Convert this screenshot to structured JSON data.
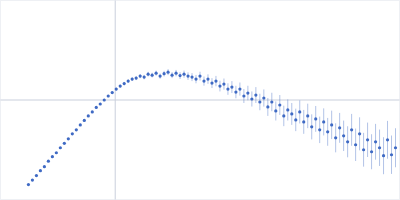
{
  "chart_data": {
    "type": "scatter",
    "x": [
      28,
      32,
      36,
      40,
      44,
      48,
      52,
      56,
      60,
      64,
      68,
      72,
      76,
      80,
      84,
      88,
      92,
      96,
      100,
      104,
      108,
      112,
      116,
      120,
      124,
      128,
      132,
      136,
      140,
      144,
      148,
      152,
      156,
      160,
      164,
      168,
      172,
      176,
      180,
      184,
      188,
      192,
      196,
      200,
      204,
      208,
      212,
      216,
      220,
      224,
      228,
      232,
      236,
      240,
      244,
      248,
      252,
      256,
      260,
      264,
      268,
      272,
      276,
      280,
      284,
      288,
      292,
      296,
      300,
      304,
      308,
      312,
      316,
      320,
      324,
      328,
      332,
      336,
      340,
      344,
      348,
      352,
      356,
      360,
      364,
      368,
      372,
      376,
      380,
      384,
      388,
      392,
      396
    ],
    "values": [
      15,
      19.5,
      24,
      29,
      33,
      38.5,
      43,
      47,
      52,
      56.5,
      61,
      66,
      70,
      75,
      79.5,
      84,
      88,
      92.5,
      96,
      100,
      104,
      107.5,
      111,
      114,
      116.5,
      119,
      121,
      122,
      124,
      123,
      126,
      125,
      127,
      124,
      126.5,
      128,
      125,
      127,
      124.5,
      126,
      124,
      123,
      121,
      124,
      119,
      121,
      117,
      119,
      114,
      116,
      111,
      113,
      108,
      111,
      104,
      107,
      101,
      105,
      98,
      102,
      93,
      98,
      89,
      95,
      84,
      90,
      86,
      80,
      88,
      78,
      84,
      73,
      81,
      70,
      78,
      68,
      75,
      62,
      72,
      64,
      58,
      70,
      55,
      66,
      50,
      60,
      48,
      58,
      52,
      44,
      60,
      45,
      52
    ],
    "errors": [
      0.5,
      0.5,
      0.5,
      0.5,
      0.6,
      0.6,
      0.6,
      0.7,
      0.7,
      0.7,
      0.8,
      0.8,
      0.8,
      0.9,
      0.9,
      1,
      1,
      1,
      1.2,
      1.2,
      1.3,
      1.4,
      1.5,
      1.6,
      1.7,
      1.8,
      1.9,
      2,
      2.1,
      2.2,
      2.3,
      2.4,
      2.5,
      2.6,
      2.8,
      3,
      3,
      3.2,
      3.4,
      3.6,
      3.8,
      4,
      4.2,
      4.4,
      4.6,
      4.8,
      5,
      5.2,
      5.4,
      5.6,
      5.8,
      6,
      6.3,
      6.6,
      7,
      7.3,
      7.6,
      8,
      8.3,
      8.6,
      9,
      9.3,
      9.6,
      10,
      10.3,
      10.6,
      11,
      11.3,
      11.6,
      12,
      12.3,
      12.6,
      13,
      13.3,
      13.6,
      14,
      14.3,
      14.6,
      15,
      15.3,
      15.6,
      16,
      16.3,
      16.6,
      17,
      17.3,
      17.6,
      18,
      18.3,
      18.6,
      19,
      19.3,
      19.6
    ],
    "color": "#3f6ac4",
    "marker": "circle",
    "xlim": [
      0,
      400
    ],
    "ylim": [
      0,
      200
    ],
    "xticks": [
      115
    ],
    "yticks": [
      100
    ],
    "grid": true,
    "tick_labels": false
  }
}
